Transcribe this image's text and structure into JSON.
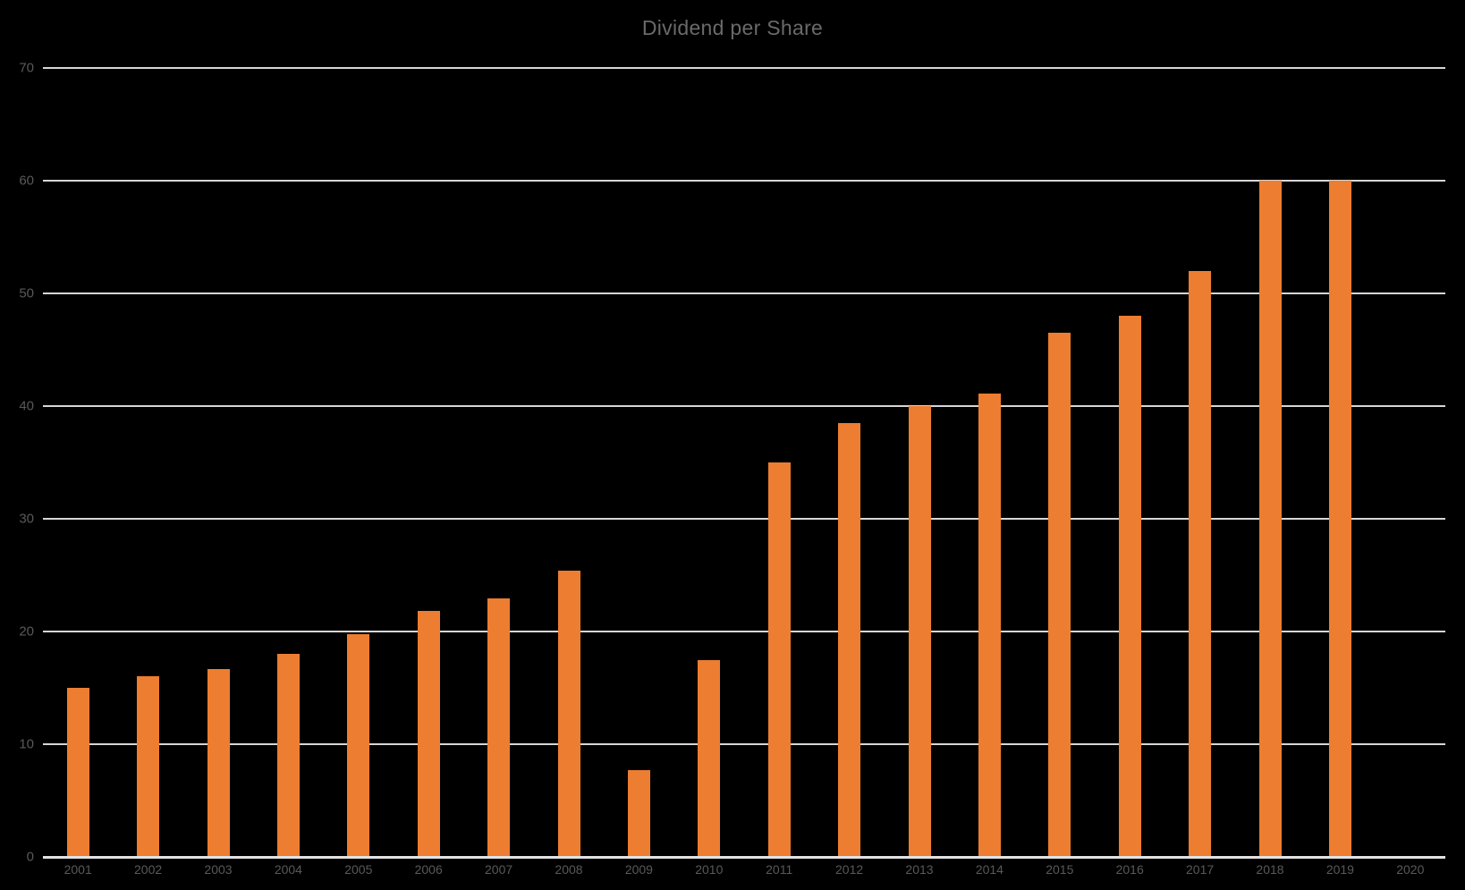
{
  "chart": {
    "title": "Dividend per Share"
  },
  "chart_data": {
    "type": "bar",
    "title": "Dividend per Share",
    "categories": [
      "2001",
      "2002",
      "2003",
      "2004",
      "2005",
      "2006",
      "2007",
      "2008",
      "2009",
      "2010",
      "2011",
      "2012",
      "2013",
      "2014",
      "2015",
      "2016",
      "2017",
      "2018",
      "2019",
      "2020"
    ],
    "values": [
      15,
      16,
      16.7,
      18,
      19.8,
      21.8,
      22.9,
      25.4,
      7.7,
      17.5,
      35,
      38.5,
      40,
      41.1,
      46.5,
      48,
      52,
      60,
      60,
      null
    ],
    "xlabel": "",
    "ylabel": "",
    "ylim": [
      0,
      70
    ],
    "yticks": [
      0,
      10,
      20,
      30,
      40,
      50,
      60,
      70
    ],
    "grid": true,
    "legend": false,
    "colors": {
      "background": "#000000",
      "bar": "#ed7d31",
      "gridline": "#d6d6d6",
      "axis_line": "#e2e2e2",
      "title_text": "#6a6a6a",
      "tick_text": "#595959"
    }
  }
}
